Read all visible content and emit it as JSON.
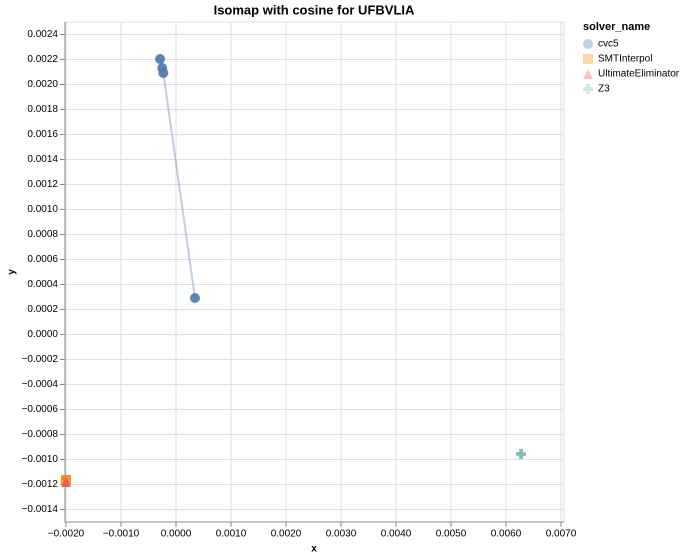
{
  "chart_data": {
    "type": "scatter",
    "title": "Isomap with cosine for UFBVLIA",
    "x_label": "x",
    "y_label": "y",
    "legend_title": "solver_name",
    "grid": true,
    "series": [
      {
        "name": "cvc5",
        "color": "#4c78a8",
        "shape": "circle",
        "x": [
          -0.00029,
          -0.00025,
          -0.00023,
          0.000345
        ],
        "values": [
          0.002204,
          0.002132,
          0.002092,
          0.000292
        ]
      },
      {
        "name": "SMTInterpol",
        "color": "#f58518",
        "shape": "square",
        "x": [
          -0.002
        ],
        "values": [
          -0.001164
        ]
      },
      {
        "name": "UltimateEliminator",
        "color": "#e45756",
        "shape": "triangle",
        "x": [
          -0.002
        ],
        "values": [
          -0.00118
        ]
      },
      {
        "name": "Z3",
        "color": "#72b7b2",
        "shape": "cross",
        "x": [
          0.006273
        ],
        "values": [
          -0.000956
        ]
      }
    ],
    "xlim": [
      -0.002,
      0.007
    ],
    "ylim": [
      -0.0015,
      0.0025
    ],
    "xticks": [
      {
        "value": -0.002,
        "label": "−0.0020"
      },
      {
        "value": -0.001,
        "label": "−0.0010"
      },
      {
        "value": 0,
        "label": "0.0000"
      },
      {
        "value": 0.001,
        "label": "0.0010"
      },
      {
        "value": 0.002,
        "label": "0.0020"
      },
      {
        "value": 0.003,
        "label": "0.0030"
      },
      {
        "value": 0.004,
        "label": "0.0040"
      },
      {
        "value": 0.005,
        "label": "0.0050"
      },
      {
        "value": 0.006,
        "label": "0.0060"
      },
      {
        "value": 0.007,
        "label": "0.0070"
      }
    ],
    "yticks": [
      {
        "value": -0.0014,
        "label": "−0.0014"
      },
      {
        "value": -0.0012,
        "label": "−0.0012"
      },
      {
        "value": -0.001,
        "label": "−0.0010"
      },
      {
        "value": -0.0008,
        "label": "−0.0008"
      },
      {
        "value": -0.0006,
        "label": "−0.0006"
      },
      {
        "value": -0.0004,
        "label": "−0.0004"
      },
      {
        "value": -0.0002,
        "label": "−0.0002"
      },
      {
        "value": 0,
        "label": "0.0000"
      },
      {
        "value": 0.0002,
        "label": "0.0002"
      },
      {
        "value": 0.0004,
        "label": "0.0004"
      },
      {
        "value": 0.0006,
        "label": "0.0006"
      },
      {
        "value": 0.0008,
        "label": "0.0008"
      },
      {
        "value": 0.001,
        "label": "0.0010"
      },
      {
        "value": 0.0012,
        "label": "0.0012"
      },
      {
        "value": 0.0014,
        "label": "0.0014"
      },
      {
        "value": 0.0016,
        "label": "0.0016"
      },
      {
        "value": 0.0018,
        "label": "0.0018"
      },
      {
        "value": 0.002,
        "label": "0.0020"
      },
      {
        "value": 0.0022,
        "label": "0.0022"
      },
      {
        "value": 0.0024,
        "label": "0.0024"
      }
    ]
  }
}
